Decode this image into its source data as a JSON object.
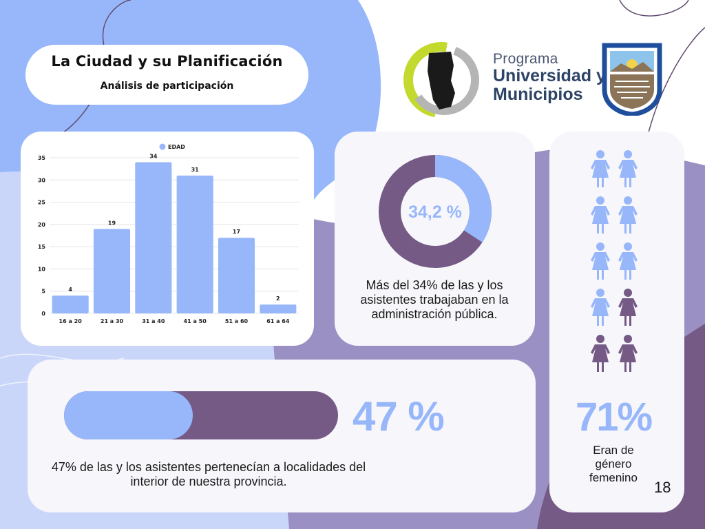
{
  "title": {
    "main": "La Ciudad y su Planificación",
    "subtitle": "Análisis de participación"
  },
  "logo": {
    "line1": "Programa",
    "line2": "Universidad y",
    "line3": "Municipios"
  },
  "colors": {
    "blue": "#97b7fa",
    "purple": "#745a85",
    "lavender": "#9b90c4"
  },
  "chart_data": {
    "type": "bar",
    "legend": "EDAD",
    "legend_position": "top",
    "categories": [
      "16 a 20",
      "21 a 30",
      "31 a 40",
      "41 a 50",
      "51 a 60",
      "61 a 64"
    ],
    "values": [
      4,
      19,
      34,
      31,
      17,
      2
    ],
    "yticks": [
      0,
      5,
      10,
      15,
      20,
      25,
      30,
      35
    ],
    "ylim": [
      0,
      35
    ],
    "grid": true
  },
  "donut": {
    "value": 34.2,
    "label": "34,2 %",
    "text": "Más del 34% de las y los asistentes trabajaban en la administración pública."
  },
  "progress": {
    "value": 47,
    "label": "47 %",
    "text": "47% de las y los asistentes pertenecían a localidades del interior de nuestra provincia."
  },
  "women": {
    "label": "71%",
    "text": "Eran de género femenino",
    "icons_total": 10,
    "icons_highlighted": 7
  },
  "page_number": "18"
}
